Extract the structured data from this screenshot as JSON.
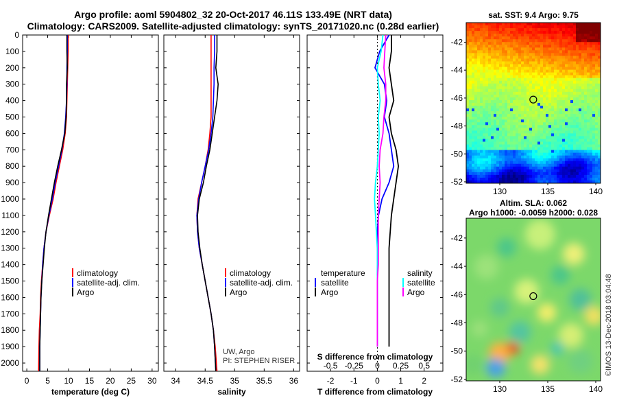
{
  "header": {
    "title_line1": "Argo profile: aoml 5904802_32 20-Oct-2017 46.11S 133.49E (NRT data)",
    "title_line2": "Climatology: CARS2009. Satellite-adjusted climatology: synTS_20171020.nc (0.28d earlier)"
  },
  "colors": {
    "climatology": "#ff0000",
    "satellite": "#0000ff",
    "argo": "#000000",
    "salinity_argo": "#ff00ff",
    "salinity_satellite": "#00ffff"
  },
  "chart_data": [
    {
      "type": "line",
      "name": "temperature profile",
      "xlabel": "temperature (deg C)",
      "ylabel": "",
      "xlim": [
        -1,
        31.5
      ],
      "ylim": [
        2050,
        0
      ],
      "xticks": [
        "0",
        "5",
        "10",
        "15",
        "20",
        "25",
        "30"
      ],
      "yticks": [
        "0",
        "100",
        "200",
        "300",
        "400",
        "500",
        "600",
        "700",
        "800",
        "900",
        "1000",
        "1100",
        "1200",
        "1300",
        "1400",
        "1500",
        "1600",
        "1700",
        "1800",
        "1900",
        "2000"
      ],
      "legend": [
        "climatology",
        "satellite-adj. clim.",
        "Argo"
      ],
      "series": [
        {
          "name": "climatology",
          "color": "#ff0000",
          "x": [
            9.9,
            9.9,
            9.8,
            9.7,
            9.6,
            9.5,
            9.2,
            8.6,
            7.8,
            7.0,
            6.3,
            5.4,
            4.6,
            4.1,
            3.8,
            3.5,
            3.3,
            3.2,
            3.0,
            2.9,
            2.8
          ],
          "y": [
            0,
            100,
            200,
            300,
            400,
            500,
            600,
            700,
            800,
            900,
            1000,
            1100,
            1200,
            1300,
            1400,
            1500,
            1600,
            1700,
            1800,
            1900,
            2050
          ]
        },
        {
          "name": "satellite-adj. clim.",
          "color": "#0000ff",
          "x": [
            9.7,
            9.7,
            9.6,
            9.6,
            9.5,
            9.3,
            9.0,
            8.4,
            7.6,
            6.8,
            6.1,
            5.3,
            4.6,
            4.1,
            3.8,
            3.6,
            3.4,
            3.3,
            3.2,
            3.1,
            3.1
          ],
          "y": [
            0,
            100,
            200,
            300,
            400,
            500,
            600,
            700,
            800,
            900,
            1000,
            1100,
            1200,
            1300,
            1400,
            1500,
            1600,
            1700,
            1800,
            1900,
            2050
          ]
        },
        {
          "name": "Argo",
          "color": "#000000",
          "x": [
            9.6,
            9.6,
            9.7,
            9.5,
            9.5,
            9.4,
            9.1,
            8.3,
            7.4,
            6.6,
            5.9,
            5.2,
            4.6,
            4.2,
            3.9,
            3.6,
            3.4,
            3.3,
            3.2,
            3.1,
            3.1
          ],
          "y": [
            0,
            100,
            200,
            300,
            400,
            500,
            600,
            700,
            800,
            900,
            1000,
            1100,
            1200,
            1300,
            1400,
            1500,
            1600,
            1700,
            1800,
            1900,
            2050
          ]
        }
      ]
    },
    {
      "type": "line",
      "name": "salinity profile",
      "xlabel": "salinity",
      "ylabel": "",
      "xlim": [
        33.8,
        36.1
      ],
      "ylim": [
        2050,
        0
      ],
      "xticks": [
        "34",
        "34.5",
        "35",
        "35.5",
        "36"
      ],
      "legend": [
        "climatology",
        "satellite-adj. clim.",
        "Argo"
      ],
      "annotations": [
        "UW, Argo",
        "PI: STEPHEN RISER"
      ],
      "series": [
        {
          "name": "climatology",
          "color": "#ff0000",
          "x": [
            34.6,
            34.6,
            34.6,
            34.6,
            34.6,
            34.6,
            34.58,
            34.55,
            34.5,
            34.44,
            34.38,
            34.36,
            34.37,
            34.4,
            34.45,
            34.5,
            34.55,
            34.6,
            34.64,
            34.67,
            34.7
          ],
          "y": [
            0,
            100,
            200,
            300,
            400,
            500,
            600,
            700,
            800,
            900,
            1000,
            1100,
            1200,
            1300,
            1400,
            1500,
            1600,
            1700,
            1800,
            1900,
            2050
          ]
        },
        {
          "name": "satellite-adj. clim.",
          "color": "#0000ff",
          "x": [
            34.66,
            34.66,
            34.65,
            34.65,
            34.64,
            34.63,
            34.6,
            34.56,
            34.5,
            34.44,
            34.39,
            34.36,
            34.37,
            34.4,
            34.45,
            34.5,
            34.55,
            34.6,
            34.64,
            34.66,
            34.68
          ],
          "y": [
            0,
            100,
            200,
            300,
            400,
            500,
            600,
            700,
            800,
            900,
            1000,
            1100,
            1200,
            1300,
            1400,
            1500,
            1600,
            1700,
            1800,
            1900,
            2050
          ]
        },
        {
          "name": "Argo",
          "color": "#000000",
          "x": [
            34.7,
            34.7,
            34.68,
            34.72,
            34.7,
            34.66,
            34.62,
            34.58,
            34.52,
            34.47,
            34.4,
            34.37,
            34.38,
            34.41,
            34.45,
            34.5,
            34.55,
            34.6,
            34.64,
            34.66,
            34.68
          ],
          "y": [
            0,
            100,
            200,
            300,
            400,
            500,
            600,
            700,
            800,
            900,
            1000,
            1100,
            1200,
            1300,
            1400,
            1500,
            1600,
            1700,
            1800,
            1900,
            2050
          ]
        }
      ]
    },
    {
      "type": "line",
      "name": "difference from climatology",
      "xlabel": "T difference from climatology",
      "xlabel_top": "S difference from climatology",
      "xlim": [
        -3,
        2.8
      ],
      "ylim": [
        2050,
        0
      ],
      "xticks": [
        "-2",
        "-1",
        "0",
        "1",
        "2"
      ],
      "xticks_top": [
        "-0.5",
        "-0.25",
        "0",
        "0.25",
        "0.5"
      ],
      "legend_temperature": {
        "heading": "temperature",
        "items": [
          "satellite",
          "Argo"
        ]
      },
      "legend_salinity": {
        "heading": "salinity",
        "items": [
          "satellite",
          "Argo"
        ]
      },
      "series": [
        {
          "name": "T satellite",
          "color": "#0000ff",
          "x": [
            0.5,
            0.1,
            -0.1,
            0.3,
            0.4,
            0.3,
            0.5,
            0.6,
            0.7,
            0.5,
            0.2,
            0.05,
            0.0,
            0.0,
            0.0,
            0.0,
            0.0,
            0.0,
            0.0,
            0.0
          ],
          "y": [
            0,
            100,
            200,
            300,
            400,
            500,
            600,
            700,
            800,
            900,
            1000,
            1100,
            1200,
            1300,
            1400,
            1500,
            1600,
            1700,
            1800,
            1900
          ]
        },
        {
          "name": "T Argo",
          "color": "#000000",
          "x": [
            0.6,
            0.6,
            0.5,
            0.6,
            0.7,
            0.5,
            0.6,
            0.8,
            0.9,
            0.8,
            0.7,
            0.6,
            0.55,
            0.5,
            0.5,
            0.5,
            0.5,
            0.5,
            0.5,
            0.5
          ],
          "y": [
            0,
            100,
            200,
            300,
            400,
            500,
            600,
            700,
            800,
            900,
            1000,
            1100,
            1200,
            1300,
            1400,
            1500,
            1600,
            1700,
            1800,
            1900
          ]
        },
        {
          "name": "S satellite",
          "color": "#00ffff",
          "x": [
            0.06,
            0.04,
            0.0,
            0.01,
            0.03,
            0.01,
            0.02,
            0.01,
            0.0,
            -0.02,
            -0.03,
            -0.02,
            -0.01,
            0.0,
            0.0,
            0.0,
            0.0,
            0.0,
            0.0,
            0.0
          ],
          "y": [
            0,
            100,
            200,
            300,
            400,
            500,
            600,
            700,
            800,
            900,
            1000,
            1100,
            1200,
            1300,
            1400,
            1500,
            1600,
            1700,
            1800,
            1900
          ]
        },
        {
          "name": "S Argo",
          "color": "#ff00ff",
          "x": [
            0.09,
            0.08,
            0.07,
            0.09,
            0.09,
            0.07,
            0.06,
            0.03,
            0.02,
            0.03,
            0.02,
            0.01,
            0.01,
            0.01,
            0.01,
            0.0,
            0.0,
            0.0,
            0.0,
            0.0
          ],
          "y": [
            0,
            100,
            200,
            300,
            400,
            500,
            600,
            700,
            800,
            900,
            1000,
            1100,
            1200,
            1300,
            1400,
            1500,
            1600,
            1700,
            1800,
            1900
          ]
        }
      ]
    },
    {
      "type": "heatmap",
      "name": "satellite SST map",
      "title": "sat. SST: 9.4 Argo: 9.75",
      "xlim": [
        126.5,
        140.5
      ],
      "ylim": [
        -52.1,
        -40.6
      ],
      "xticks": [
        "130",
        "135",
        "140"
      ],
      "yticks": [
        "-42",
        "-44",
        "-46",
        "-48",
        "-50",
        "-52"
      ],
      "marker": {
        "lon": 133.49,
        "lat": -46.11
      }
    },
    {
      "type": "heatmap",
      "name": "altimetry SLA map",
      "title_line1": "Altim. SLA: 0.062",
      "title_line2": "Argo h1000: -0.0059 h2000: 0.028",
      "xlim": [
        126.5,
        140.5
      ],
      "ylim": [
        -52.1,
        -40.6
      ],
      "xticks": [
        "130",
        "135",
        "140"
      ],
      "yticks": [
        "-42",
        "-44",
        "-46",
        "-48",
        "-50",
        "-52"
      ],
      "marker": {
        "lon": 133.49,
        "lat": -46.11
      }
    }
  ],
  "footer": {
    "credit": "©IMOS 13-Dec-2018 03:04:48"
  }
}
